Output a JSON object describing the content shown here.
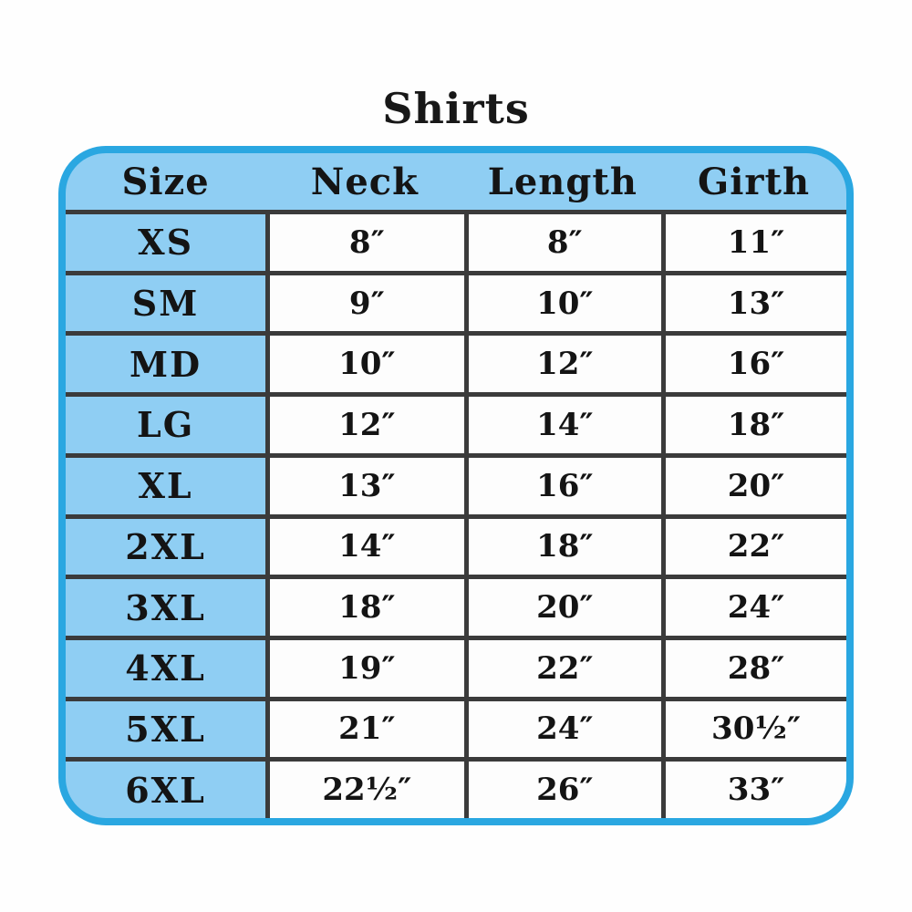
{
  "colors": {
    "border_blue": "#2AA7E1",
    "fill_blue": "#8FCEF3",
    "grid_line": "#3B3B3B",
    "cell_white": "#FDFDFD",
    "text": "#141414"
  },
  "chart_data": {
    "type": "table",
    "title": "Shirts",
    "columns": [
      "Size",
      "Neck",
      "Length",
      "Girth"
    ],
    "rows": [
      [
        "XS",
        "8″",
        "8″",
        "11″"
      ],
      [
        "SM",
        "9″",
        "10″",
        "13″"
      ],
      [
        "MD",
        "10″",
        "12″",
        "16″"
      ],
      [
        "LG",
        "12″",
        "14″",
        "18″"
      ],
      [
        "XL",
        "13″",
        "16″",
        "20″"
      ],
      [
        "2XL",
        "14″",
        "18″",
        "22″"
      ],
      [
        "3XL",
        "18″",
        "20″",
        "24″"
      ],
      [
        "4XL",
        "19″",
        "22″",
        "28″"
      ],
      [
        "5XL",
        "21″",
        "24″",
        "30½″"
      ],
      [
        "6XL",
        "22½″",
        "26″",
        "33″"
      ]
    ]
  }
}
